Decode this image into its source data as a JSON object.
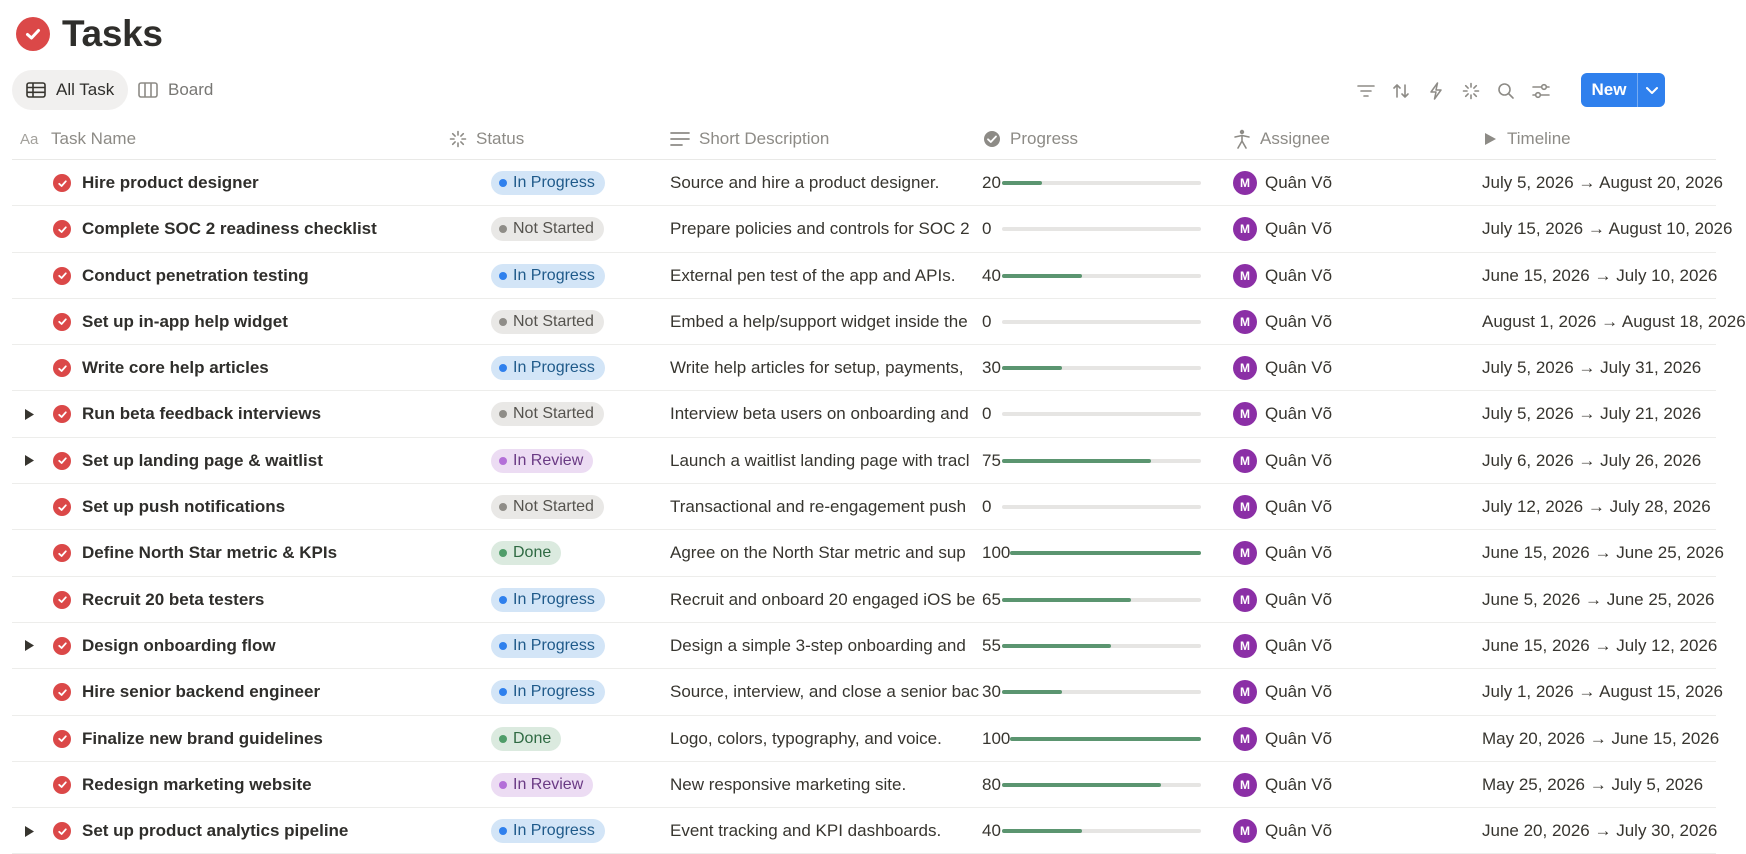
{
  "page": {
    "title": "Tasks",
    "icon": "check-circle-icon"
  },
  "views": [
    {
      "label": "All Task",
      "icon": "table-icon",
      "active": true
    },
    {
      "label": "Board",
      "icon": "board-icon",
      "active": false
    }
  ],
  "toolbar": {
    "icons": [
      "filter-icon",
      "sort-icon",
      "automation-icon",
      "loading-icon",
      "search-icon",
      "settings-icon"
    ],
    "new_label": "New"
  },
  "columns": {
    "task_name": "Task Name",
    "status": "Status",
    "short_description": "Short Description",
    "progress": "Progress",
    "assignee": "Assignee",
    "timeline": "Timeline"
  },
  "status_colors": {
    "In Progress": {
      "bg": "#d3e5f7",
      "text": "#1f5a8a",
      "dot": "#2f80ed"
    },
    "Not Started": {
      "bg": "#e9e8e6",
      "text": "#55534e",
      "dot": "#8f8d88"
    },
    "In Review": {
      "bg": "#ecdcf3",
      "text": "#6a3a84",
      "dot": "#b36fd8"
    },
    "Done": {
      "bg": "#dbeadf",
      "text": "#2f6a43",
      "dot": "#4f9d69"
    }
  },
  "rows": [
    {
      "name": "Hire product designer",
      "expandable": false,
      "status": "In Progress",
      "description": "Source and hire a product designer.",
      "progress": 20,
      "assignee": "Quân Võ",
      "assignee_initial": "M",
      "timeline": "July 5, 2026 → August 20, 2026"
    },
    {
      "name": "Complete SOC 2 readiness checklist",
      "expandable": false,
      "status": "Not Started",
      "description": "Prepare policies and controls for SOC 2",
      "progress": 0,
      "assignee": "Quân Võ",
      "assignee_initial": "M",
      "timeline": "July 15, 2026 → August 10, 2026"
    },
    {
      "name": "Conduct penetration testing",
      "expandable": false,
      "status": "In Progress",
      "description": "External pen test of the app and APIs.",
      "progress": 40,
      "assignee": "Quân Võ",
      "assignee_initial": "M",
      "timeline": "June 15, 2026 → July 10, 2026"
    },
    {
      "name": "Set up in-app help widget",
      "expandable": false,
      "status": "Not Started",
      "description": "Embed a help/support widget inside the",
      "progress": 0,
      "assignee": "Quân Võ",
      "assignee_initial": "M",
      "timeline": "August 1, 2026 → August 18, 2026"
    },
    {
      "name": "Write core help articles",
      "expandable": false,
      "status": "In Progress",
      "description": "Write help articles for setup, payments,",
      "progress": 30,
      "assignee": "Quân Võ",
      "assignee_initial": "M",
      "timeline": "July 5, 2026 → July 31, 2026"
    },
    {
      "name": "Run beta feedback interviews",
      "expandable": true,
      "status": "Not Started",
      "description": "Interview beta users on onboarding and",
      "progress": 0,
      "assignee": "Quân Võ",
      "assignee_initial": "M",
      "timeline": "July 5, 2026 → July 21, 2026"
    },
    {
      "name": "Set up landing page & waitlist",
      "expandable": true,
      "status": "In Review",
      "description": "Launch a waitlist landing page with tracl",
      "progress": 75,
      "assignee": "Quân Võ",
      "assignee_initial": "M",
      "timeline": "July 6, 2026 → July 26, 2026"
    },
    {
      "name": "Set up push notifications",
      "expandable": false,
      "status": "Not Started",
      "description": "Transactional and re-engagement push",
      "progress": 0,
      "assignee": "Quân Võ",
      "assignee_initial": "M",
      "timeline": "July 12, 2026 → July 28, 2026"
    },
    {
      "name": "Define North Star metric & KPIs",
      "expandable": false,
      "status": "Done",
      "description": "Agree on the North Star metric and sup",
      "progress": 100,
      "assignee": "Quân Võ",
      "assignee_initial": "M",
      "timeline": "June 15, 2026 → June 25, 2026"
    },
    {
      "name": "Recruit 20 beta testers",
      "expandable": false,
      "status": "In Progress",
      "description": "Recruit and onboard 20 engaged iOS be",
      "progress": 65,
      "assignee": "Quân Võ",
      "assignee_initial": "M",
      "timeline": "June 5, 2026 → June 25, 2026"
    },
    {
      "name": "Design onboarding flow",
      "expandable": true,
      "status": "In Progress",
      "description": "Design a simple 3-step onboarding and",
      "progress": 55,
      "assignee": "Quân Võ",
      "assignee_initial": "M",
      "timeline": "June 15, 2026 → July 12, 2026"
    },
    {
      "name": "Hire senior backend engineer",
      "expandable": false,
      "status": "In Progress",
      "description": "Source, interview, and close a senior bac",
      "progress": 30,
      "assignee": "Quân Võ",
      "assignee_initial": "M",
      "timeline": "July 1, 2026 → August 15, 2026"
    },
    {
      "name": "Finalize new brand guidelines",
      "expandable": false,
      "status": "Done",
      "description": "Logo, colors, typography, and voice.",
      "progress": 100,
      "assignee": "Quân Võ",
      "assignee_initial": "M",
      "timeline": "May 20, 2026 → June 15, 2026"
    },
    {
      "name": "Redesign marketing website",
      "expandable": false,
      "status": "In Review",
      "description": "New responsive marketing site.",
      "progress": 80,
      "assignee": "Quân Võ",
      "assignee_initial": "M",
      "timeline": "May 25, 2026 → July 5, 2026"
    },
    {
      "name": "Set up product analytics pipeline",
      "expandable": true,
      "status": "In Progress",
      "description": "Event tracking and KPI dashboards.",
      "progress": 40,
      "assignee": "Quân Võ",
      "assignee_initial": "M",
      "timeline": "June 20, 2026 → July 30, 2026"
    }
  ]
}
